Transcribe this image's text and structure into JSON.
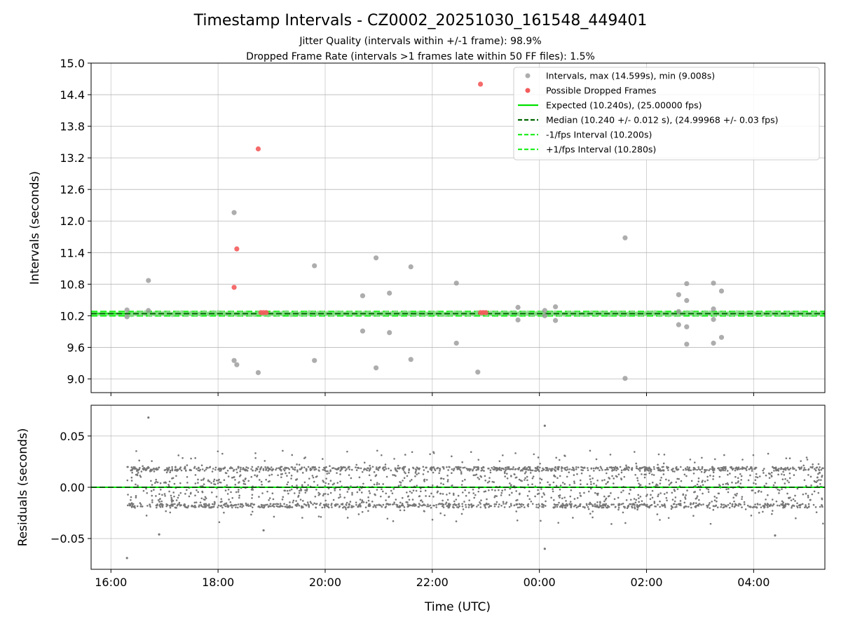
{
  "figure": {
    "title": "Timestamp Intervals - CZ0002_20251030_161548_449401",
    "subtitle_line1": "Jitter Quality (intervals within +/-1 frame): 98.9%",
    "subtitle_line2": "Dropped Frame Rate (intervals >1 frames late within 50 FF files): 1.5%"
  },
  "colors": {
    "intervals": "#999999",
    "dropped": "#f45b5b",
    "expected": "#00e000",
    "median": "#006400",
    "fps_band": "#22ee22",
    "residuals": "#777777",
    "grid": "#b0b0b0"
  },
  "chart_data": [
    {
      "type": "scatter",
      "xlabel": "",
      "ylabel": "Intervals (seconds)",
      "x_unit": "hours since 00:00 UTC of the start date (times after midnight continue past 24)",
      "xlim": [
        15.63,
        29.33
      ],
      "ylim": [
        8.74,
        15.0
      ],
      "yticks": [
        9.0,
        9.6,
        10.2,
        10.8,
        11.4,
        12.0,
        12.6,
        13.2,
        13.8,
        14.4,
        15.0
      ],
      "ytick_labels": [
        "9.0",
        "9.6",
        "10.2",
        "10.8",
        "11.4",
        "12.0",
        "12.6",
        "13.2",
        "13.8",
        "14.4",
        "15.0"
      ],
      "grid": true,
      "legend_position": "upper right",
      "series": [
        {
          "name": "Intervals, max (14.599s), min (9.008s)",
          "kind": "scatter",
          "points": [
            [
              16.3,
              10.31
            ],
            [
              16.3,
              10.18
            ],
            [
              16.7,
              10.87
            ],
            [
              16.7,
              10.3
            ],
            [
              18.3,
              12.16
            ],
            [
              18.3,
              9.35
            ],
            [
              18.35,
              9.27
            ],
            [
              18.75,
              9.12
            ],
            [
              19.8,
              11.15
            ],
            [
              19.8,
              9.35
            ],
            [
              20.7,
              10.58
            ],
            [
              20.7,
              9.91
            ],
            [
              20.95,
              11.3
            ],
            [
              20.95,
              9.21
            ],
            [
              21.2,
              10.63
            ],
            [
              21.2,
              9.88
            ],
            [
              21.6,
              11.13
            ],
            [
              21.6,
              9.37
            ],
            [
              22.45,
              10.82
            ],
            [
              22.45,
              9.68
            ],
            [
              22.85,
              9.13
            ],
            [
              23.6,
              10.36
            ],
            [
              23.6,
              10.12
            ],
            [
              24.1,
              10.3
            ],
            [
              24.1,
              10.2
            ],
            [
              24.3,
              10.37
            ],
            [
              24.3,
              10.11
            ],
            [
              25.6,
              11.68
            ],
            [
              25.6,
              9.01
            ],
            [
              26.6,
              10.6
            ],
            [
              26.6,
              10.03
            ],
            [
              26.6,
              10.28
            ],
            [
              26.75,
              10.81
            ],
            [
              26.75,
              10.49
            ],
            [
              26.75,
              9.99
            ],
            [
              26.75,
              9.66
            ],
            [
              27.25,
              10.82
            ],
            [
              27.25,
              10.33
            ],
            [
              27.25,
              10.13
            ],
            [
              27.25,
              9.68
            ],
            [
              27.4,
              10.67
            ],
            [
              27.4,
              9.79
            ]
          ]
        },
        {
          "name": "Possible Dropped Frames",
          "kind": "scatter",
          "points": [
            [
              18.3,
              10.74
            ],
            [
              18.35,
              11.47
            ],
            [
              18.75,
              13.37
            ],
            [
              18.8,
              10.26
            ],
            [
              18.85,
              10.26
            ],
            [
              18.9,
              10.26
            ],
            [
              22.9,
              14.6
            ],
            [
              22.9,
              10.26
            ],
            [
              22.95,
              10.26
            ],
            [
              23.0,
              10.26
            ]
          ]
        },
        {
          "name": "Expected (10.240s), (25.00000 fps)",
          "kind": "hline",
          "y": 10.24
        },
        {
          "name": "Median (10.240 +/- 0.012 s), (24.99968 +/- 0.03 fps)",
          "kind": "hline",
          "y": 10.24
        },
        {
          "name": "-1/fps Interval (10.200s)",
          "kind": "hline",
          "y": 10.2
        },
        {
          "name": "+1/fps Interval (10.280s)",
          "kind": "hline",
          "y": 10.28
        }
      ],
      "band_samples": {
        "x_start": 16.3,
        "x_end": 29.3,
        "note": "dense points at ~10.24 s along the band"
      }
    },
    {
      "type": "scatter",
      "xlabel": "Time (UTC)",
      "ylabel": "Residuals (seconds)",
      "x_unit": "hours since 00:00 UTC of the start date (times after midnight continue past 24)",
      "xlim": [
        15.63,
        29.33
      ],
      "ylim": [
        -0.08,
        0.08
      ],
      "xticks": [
        16,
        18,
        20,
        22,
        24,
        26,
        28
      ],
      "xtick_labels": [
        "16:00",
        "18:00",
        "20:00",
        "22:00",
        "00:00",
        "02:00",
        "04:00"
      ],
      "yticks": [
        -0.05,
        0.0,
        0.05
      ],
      "ytick_labels": [
        "−0.05",
        "0.00",
        "0.05"
      ],
      "grid": true,
      "series": [
        {
          "name": "",
          "kind": "scatter",
          "notable_points": [
            [
              16.3,
              -0.069
            ],
            [
              16.7,
              0.068
            ],
            [
              16.9,
              -0.046
            ],
            [
              18.85,
              -0.042
            ],
            [
              24.1,
              0.06
            ],
            [
              24.1,
              -0.06
            ],
            [
              28.4,
              -0.047
            ]
          ],
          "bulk": {
            "x_start": 16.3,
            "x_end": 29.3,
            "spread_core": 0.02,
            "spread_max": 0.036,
            "count": 2600
          }
        },
        {
          "name": "",
          "kind": "hline",
          "y": 0.0
        }
      ]
    }
  ]
}
